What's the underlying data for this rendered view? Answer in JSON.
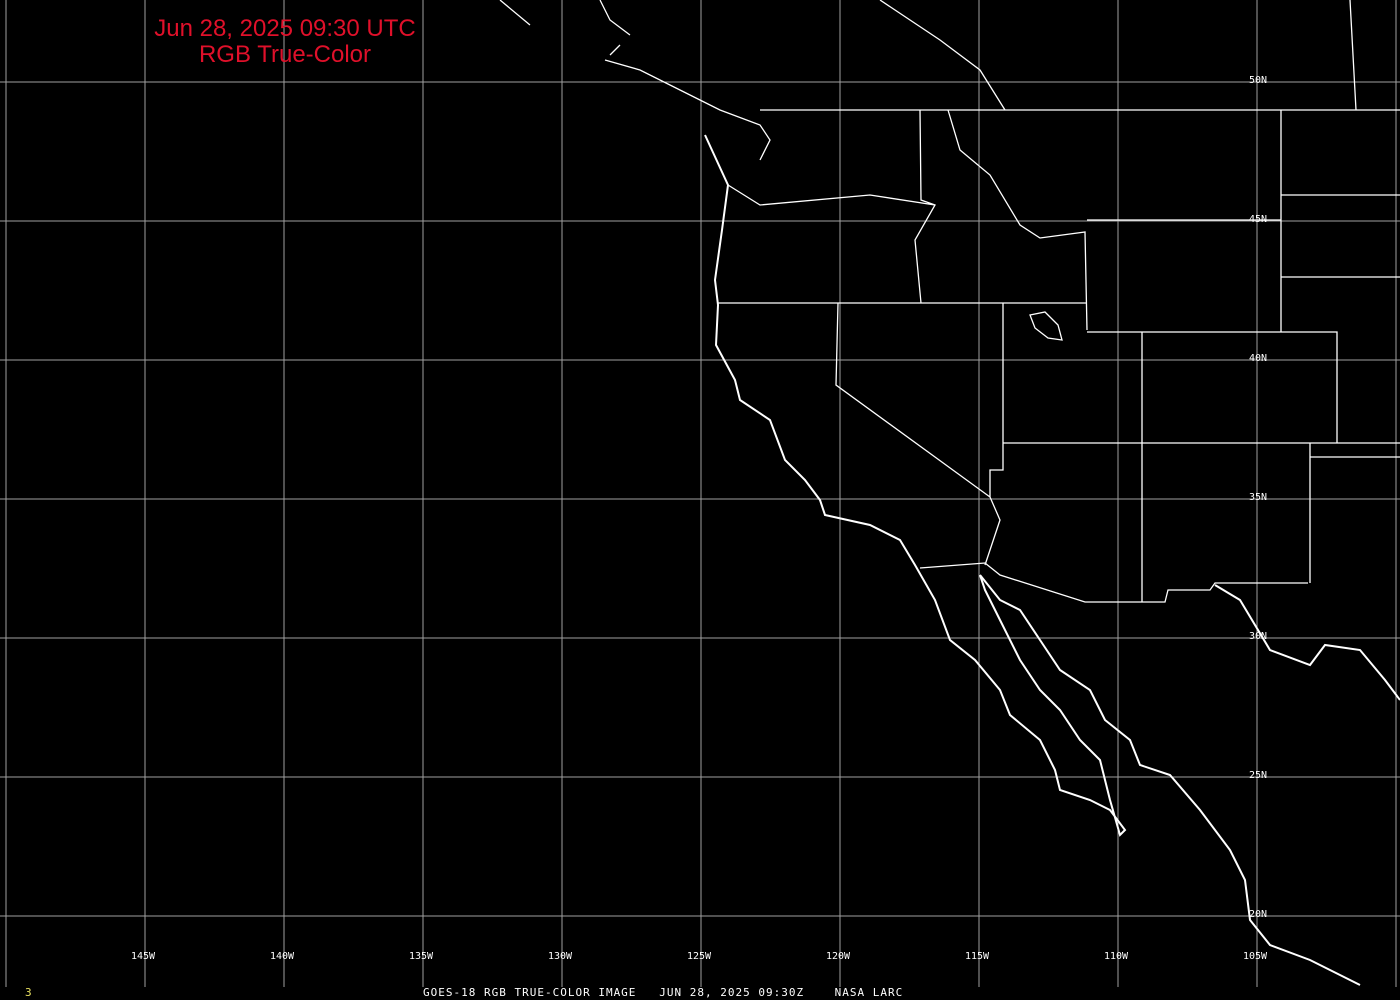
{
  "title": {
    "line1": "Jun 28, 2025 09:30 UTC",
    "line2": "RGB True-Color"
  },
  "longitude_labels": [
    "145W",
    "140W",
    "135W",
    "130W",
    "125W",
    "120W",
    "115W",
    "110W",
    "105W"
  ],
  "latitude_labels": [
    "50N",
    "45N",
    "40N",
    "35N",
    "30N",
    "25N",
    "20N"
  ],
  "footer": {
    "frame": "3",
    "caption": "GOES-18 RGB TRUE-COLOR IMAGE   JUN 28, 2025 09:30Z    NASA LARC"
  },
  "colors": {
    "title": "#e0102a",
    "grid": "#a0a0a0",
    "coastline": "#ffffff",
    "frame_number": "#e8e060",
    "background": "#000000"
  }
}
